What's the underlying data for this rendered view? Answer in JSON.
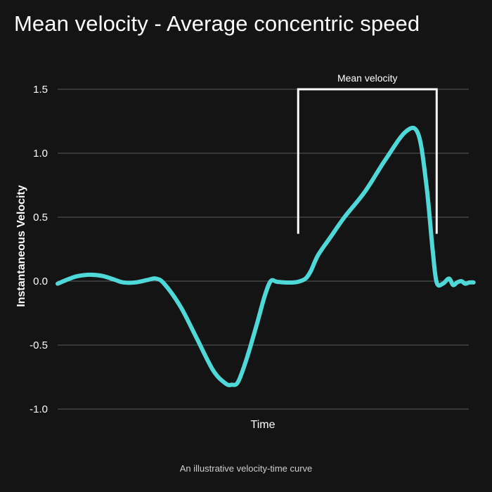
{
  "title": "Mean velocity - Average concentric speed",
  "caption": "An illustrative velocity-time curve",
  "colors": {
    "background": "#141414",
    "series": "#4fd8d8",
    "grid": "#5a5a5a",
    "text": "#ffffff",
    "bracket": "#ffffff"
  },
  "chart_data": {
    "type": "line",
    "xlabel": "Time",
    "ylabel": "Instantaneous Velocity",
    "ylim": [
      -1.0,
      1.5
    ],
    "xlim": [
      0,
      100
    ],
    "yticks": [
      -1.0,
      -0.5,
      0.0,
      0.5,
      1.0,
      1.5
    ],
    "ytick_labels": [
      "-1.0",
      "-0.5",
      "0.0",
      "0.5",
      "1.0",
      "1.5"
    ],
    "x_tick_labels_shown": false,
    "grid": "horizontal",
    "series": [
      {
        "x": [
          0,
          3,
          5,
          8,
          11,
          14,
          16,
          19,
          22,
          24,
          26,
          30,
          34,
          38,
          41,
          42.5,
          44,
          46,
          48.5,
          50.5,
          52,
          53.5,
          55.5,
          57.5,
          58.7,
          60.5,
          61.8,
          63.5,
          66.5,
          70,
          75,
          80,
          85,
          88,
          90,
          91.5,
          92.5,
          94,
          95.5,
          96.5,
          97.5,
          98.5,
          99.5,
          100.5,
          101.5
        ],
        "y": [
          -0.02,
          0.02,
          0.04,
          0.05,
          0.04,
          0.01,
          -0.01,
          -0.01,
          0.01,
          0.02,
          -0.02,
          -0.2,
          -0.45,
          -0.7,
          -0.8,
          -0.81,
          -0.79,
          -0.62,
          -0.35,
          -0.12,
          0.0,
          -0.005,
          -0.01,
          -0.01,
          -0.005,
          0.02,
          0.08,
          0.2,
          0.34,
          0.5,
          0.7,
          0.95,
          1.17,
          1.15,
          0.75,
          0.25,
          -0.01,
          -0.02,
          0.02,
          -0.03,
          -0.01,
          0.0,
          -0.02,
          -0.01,
          -0.01
        ]
      }
    ],
    "annotations": [
      {
        "type": "bracket",
        "label": "Mean velocity",
        "x_start": 58.7,
        "x_end": 92.5,
        "y_top": 1.5,
        "y_bottom": 0.37
      }
    ]
  }
}
